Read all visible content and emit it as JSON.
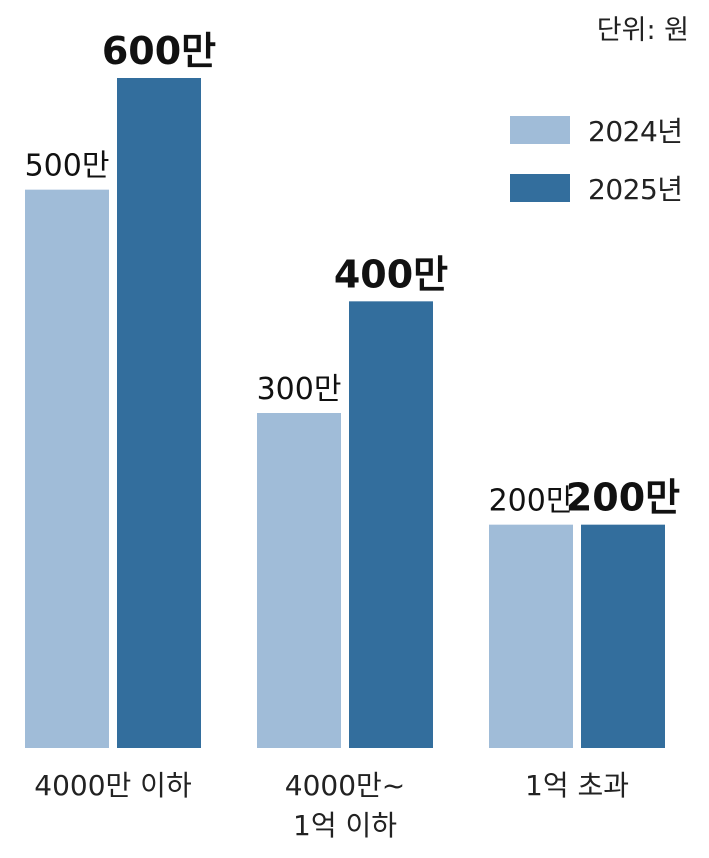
{
  "unit_label": "단위: 원",
  "chart_data": {
    "type": "bar",
    "categories": [
      [
        "4000만 이하"
      ],
      [
        "4000만~",
        "1억 이하"
      ],
      [
        "1억 초과"
      ]
    ],
    "series": [
      {
        "name": "2024년",
        "values": [
          500,
          300,
          200
        ],
        "labels": [
          "500만",
          "300만",
          "200만"
        ],
        "color": "#a0bcd8"
      },
      {
        "name": "2025년",
        "values": [
          600,
          400,
          200
        ],
        "labels": [
          "600만",
          "400만",
          "200만"
        ],
        "color": "#336e9d"
      }
    ],
    "ylim": [
      0,
      600
    ],
    "unit": "원",
    "legend_position": "top-right",
    "grid": false
  }
}
